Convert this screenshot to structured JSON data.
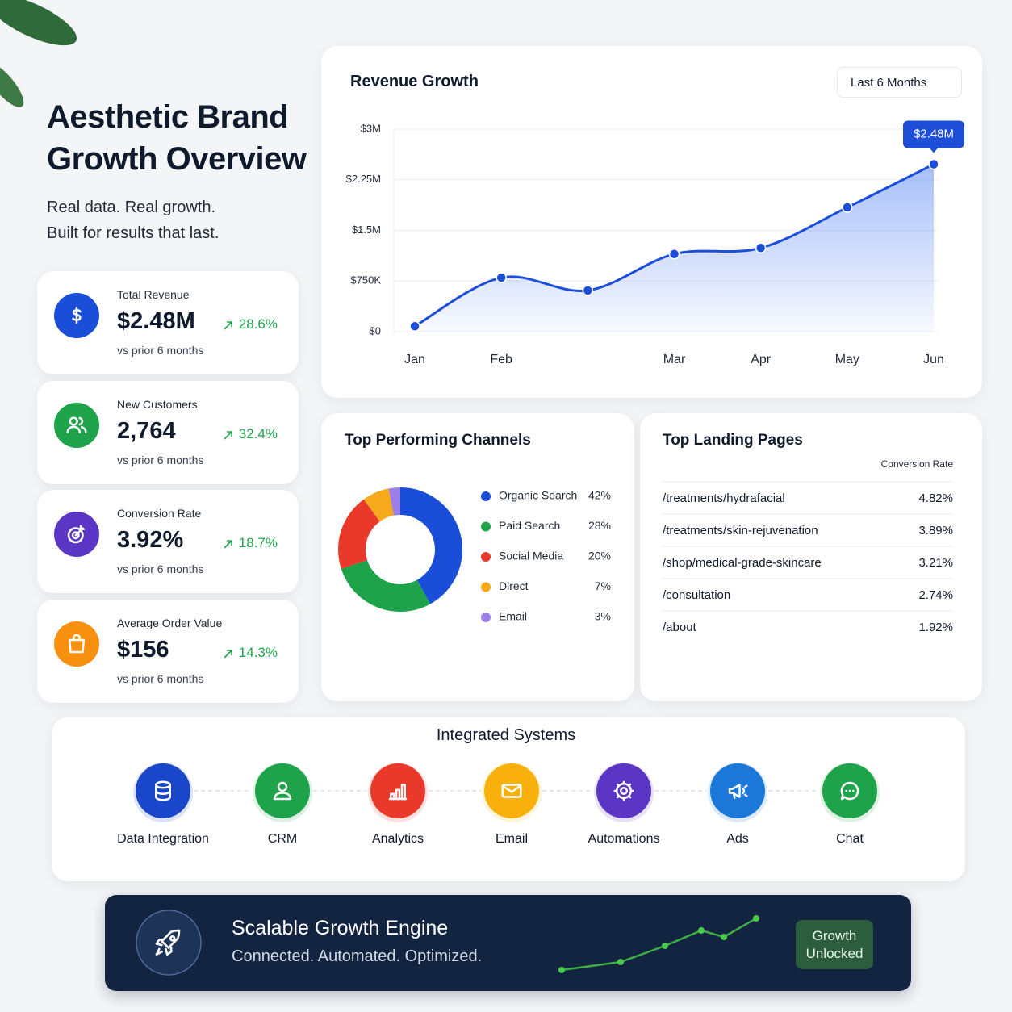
{
  "header": {
    "title_lines": [
      "Aesthetic Brand",
      "Growth Overview"
    ],
    "subtitle_lines": [
      "Real data. Real growth.",
      "Built for results that last."
    ]
  },
  "kpis": [
    {
      "label": "Total Revenue",
      "value": "$2.48M",
      "change": "28.6%",
      "note": "vs prior 6 months",
      "color": "#1a4ed8"
    },
    {
      "label": "New Customers",
      "value": "2,764",
      "change": "32.4%",
      "note": "vs prior 6 months",
      "color": "#1fa34a"
    },
    {
      "label": "Conversion Rate",
      "value": "3.92%",
      "change": "18.7%",
      "note": "vs prior 6 months",
      "color": "#5b35c4"
    },
    {
      "label": "Average Order Value",
      "value": "$156",
      "change": "14.3%",
      "note": "vs prior 6 months",
      "color": "#f7900f"
    }
  ],
  "chart_data": [
    {
      "type": "line",
      "title": "Revenue Growth",
      "control": "Last 6 Months",
      "categories": [
        "Jan",
        "Feb",
        null,
        "Mar",
        "Apr",
        "May",
        "Jun"
      ],
      "values": [
        80000,
        800000,
        610000,
        1150000,
        1240000,
        1840000,
        2480000
      ],
      "value_labels": [
        null,
        null,
        null,
        null,
        null,
        null,
        "$2.48M"
      ],
      "color": "#1d4ed8",
      "ylim": [
        0,
        3000000
      ],
      "yticks": [
        {
          "value": 0,
          "label": "$0"
        },
        {
          "value": 750000,
          "label": "$750K"
        },
        {
          "value": 1500000,
          "label": "$1.5M"
        },
        {
          "value": 2250000,
          "label": "$2.25M"
        },
        {
          "value": 3000000,
          "label": "$3M"
        }
      ],
      "grid": true
    },
    {
      "type": "pie",
      "title": "Top Performing Channels",
      "donut": true,
      "categories": [
        "Organic Search",
        "Paid Search",
        "Social Media",
        "Direct",
        "Email"
      ],
      "values": [
        42,
        28,
        20,
        7,
        3
      ],
      "value_labels": [
        "42%",
        "28%",
        "20%",
        "7%",
        "3%"
      ],
      "colors": [
        "#1a4ed8",
        "#1fa34a",
        "#e8392b",
        "#f6a91b",
        "#9b7fe6"
      ]
    }
  ],
  "landing_pages": {
    "title": "Top Landing Pages",
    "column": "Conversion Rate",
    "rows": [
      [
        "/treatments/hydrafacial",
        "4.82%"
      ],
      [
        "/treatments/skin-rejuvenation",
        "3.89%"
      ],
      [
        "/shop/medical-grade-skincare",
        "3.21%"
      ],
      [
        "/consultation",
        "2.74%"
      ],
      [
        "/about",
        "1.92%"
      ]
    ]
  },
  "systems": {
    "title": "Integrated Systems",
    "items": [
      {
        "label": "Data Integration",
        "color": "#1a47c9"
      },
      {
        "label": "CRM",
        "color": "#1fa34a"
      },
      {
        "label": "Analytics",
        "color": "#e8392b"
      },
      {
        "label": "Email",
        "color": "#f7b00c"
      },
      {
        "label": "Automations",
        "color": "#5b35c4"
      },
      {
        "label": "Ads",
        "color": "#1b78d8"
      },
      {
        "label": "Chat",
        "color": "#1fa34a"
      }
    ]
  },
  "banner": {
    "title": "Scalable Growth Engine",
    "subtitle": "Connected. Automated. Optimized.",
    "badge": "Growth Unlocked"
  }
}
